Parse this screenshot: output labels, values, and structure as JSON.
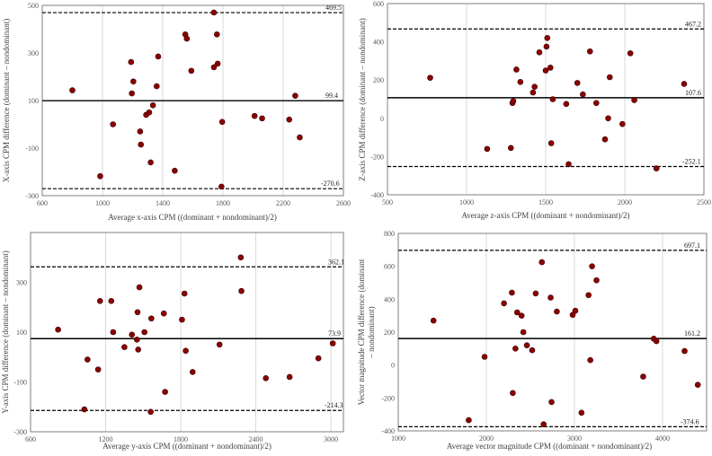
{
  "chart_data": [
    {
      "type": "scatter",
      "title": "",
      "xlabel": "Average x-axis CPM ((dominant + nondominant)/2)",
      "ylabel": "X-axis CPM difference (dominant – nondominant)",
      "xlim": [
        600,
        2600
      ],
      "ylim": [
        -300,
        500
      ],
      "xticks": [
        "600",
        "1000",
        "1400",
        "1800",
        "2200",
        "2600"
      ],
      "yticks": [
        "-300",
        "-100",
        "100",
        "300",
        "500"
      ],
      "xgrid": [
        1000,
        1400,
        1800,
        2200
      ],
      "grid": true,
      "mean_label": "99.4",
      "mean": 99.4,
      "upper_label": "469.5",
      "upper": 469.5,
      "lower_label": "-270.6",
      "lower": -270.6,
      "points": [
        [
          800,
          143
        ],
        [
          985,
          -218
        ],
        [
          1070,
          0
        ],
        [
          1190,
          262
        ],
        [
          1195,
          130
        ],
        [
          1205,
          180
        ],
        [
          1250,
          -30
        ],
        [
          1255,
          -85
        ],
        [
          1290,
          40
        ],
        [
          1310,
          50
        ],
        [
          1320,
          -160
        ],
        [
          1335,
          80
        ],
        [
          1360,
          160
        ],
        [
          1370,
          285
        ],
        [
          1480,
          -195
        ],
        [
          1550,
          378
        ],
        [
          1560,
          360
        ],
        [
          1590,
          225
        ],
        [
          1740,
          470
        ],
        [
          1740,
          240
        ],
        [
          1760,
          378
        ],
        [
          1765,
          255
        ],
        [
          1790,
          -262
        ],
        [
          1795,
          10
        ],
        [
          2010,
          35
        ],
        [
          2060,
          25
        ],
        [
          2240,
          20
        ],
        [
          2280,
          120
        ],
        [
          2310,
          -55
        ]
      ]
    },
    {
      "type": "scatter",
      "title": "",
      "xlabel": "Average z-axis CPM ((dominant + nondominant)/2)",
      "ylabel": "Z-axis CPM difference (dominant – nondominant)",
      "xlim": [
        500,
        2500
      ],
      "ylim": [
        -400,
        600
      ],
      "xticks": [
        "500",
        "1000",
        "1500",
        "2000",
        "2500"
      ],
      "yticks": [
        "-400",
        "-200",
        "0",
        "200",
        "400",
        "600"
      ],
      "xgrid": [
        1000,
        1500,
        2000
      ],
      "grid": true,
      "mean_label": "107.6",
      "mean": 107.6,
      "upper_label": "467.2",
      "upper": 467.2,
      "lower_label": "-252.1",
      "lower": -252.1,
      "points": [
        [
          770,
          212
        ],
        [
          1130,
          -160
        ],
        [
          1280,
          -155
        ],
        [
          1290,
          80
        ],
        [
          1295,
          90
        ],
        [
          1315,
          255
        ],
        [
          1340,
          190
        ],
        [
          1420,
          135
        ],
        [
          1430,
          165
        ],
        [
          1460,
          345
        ],
        [
          1500,
          250
        ],
        [
          1505,
          375
        ],
        [
          1510,
          420
        ],
        [
          1530,
          265
        ],
        [
          1535,
          -130
        ],
        [
          1545,
          100
        ],
        [
          1630,
          75
        ],
        [
          1645,
          -240
        ],
        [
          1700,
          185
        ],
        [
          1735,
          125
        ],
        [
          1780,
          350
        ],
        [
          1820,
          80
        ],
        [
          1875,
          -110
        ],
        [
          1895,
          0
        ],
        [
          1905,
          215
        ],
        [
          1985,
          -30
        ],
        [
          2035,
          340
        ],
        [
          2060,
          95
        ],
        [
          2200,
          -262
        ],
        [
          2375,
          180
        ]
      ]
    },
    {
      "type": "scatter",
      "title": "",
      "xlabel": "Average y-axis CPM ((dominant + nondominant)/2)",
      "ylabel": "Y-axis CPM difference (dominant – nondominant)",
      "xlim": [
        600,
        3100
      ],
      "ylim": [
        -300,
        500
      ],
      "xticks": [
        "600",
        "1200",
        "1800",
        "2400",
        "3000"
      ],
      "yticks": [
        "-300",
        "-100",
        "100",
        "300"
      ],
      "xgrid": [
        1200,
        1800,
        2400,
        3000
      ],
      "grid": true,
      "mean_label": "73.9",
      "mean": 73.9,
      "upper_label": "362.1",
      "upper": 362.1,
      "lower_label": "-214.3",
      "lower": -214.3,
      "points": [
        [
          820,
          110
        ],
        [
          1030,
          -210
        ],
        [
          1055,
          -10
        ],
        [
          1140,
          -50
        ],
        [
          1155,
          225
        ],
        [
          1245,
          225
        ],
        [
          1260,
          100
        ],
        [
          1350,
          40
        ],
        [
          1410,
          90
        ],
        [
          1450,
          70
        ],
        [
          1455,
          180
        ],
        [
          1460,
          30
        ],
        [
          1470,
          280
        ],
        [
          1510,
          100
        ],
        [
          1560,
          -220
        ],
        [
          1565,
          155
        ],
        [
          1665,
          175
        ],
        [
          1675,
          -140
        ],
        [
          1810,
          150
        ],
        [
          1830,
          255
        ],
        [
          1840,
          25
        ],
        [
          1895,
          -60
        ],
        [
          2110,
          50
        ],
        [
          2280,
          400
        ],
        [
          2285,
          265
        ],
        [
          2480,
          -85
        ],
        [
          2670,
          -80
        ],
        [
          2900,
          -5
        ],
        [
          3015,
          55
        ]
      ]
    },
    {
      "type": "scatter",
      "title": "",
      "xlabel": "Average vector magnitude CPM ((dominant + nondominant)/2)",
      "ylabel": "Vector magnitude CPM difference (dominant – nondominant)",
      "xlim": [
        1000,
        4500
      ],
      "ylim": [
        -400,
        800
      ],
      "xticks": [
        "1000",
        "2000",
        "3000",
        "4000"
      ],
      "yticks": [
        "-400",
        "-200",
        "0",
        "200",
        "400",
        "600",
        "800"
      ],
      "xgrid": [
        2000,
        3000,
        4000
      ],
      "grid": true,
      "mean_label": "161.2",
      "mean": 161.2,
      "upper_label": "697.1",
      "upper": 697.1,
      "lower_label": "-374.6",
      "lower": -374.6,
      "points": [
        [
          1400,
          270
        ],
        [
          1800,
          -335
        ],
        [
          1980,
          50
        ],
        [
          2200,
          375
        ],
        [
          2290,
          440
        ],
        [
          2300,
          -170
        ],
        [
          2330,
          100
        ],
        [
          2350,
          320
        ],
        [
          2400,
          300
        ],
        [
          2420,
          200
        ],
        [
          2460,
          120
        ],
        [
          2520,
          90
        ],
        [
          2560,
          435
        ],
        [
          2630,
          625
        ],
        [
          2650,
          -360
        ],
        [
          2730,
          410
        ],
        [
          2740,
          -225
        ],
        [
          2800,
          325
        ],
        [
          2980,
          305
        ],
        [
          3010,
          330
        ],
        [
          3080,
          -290
        ],
        [
          3160,
          425
        ],
        [
          3180,
          30
        ],
        [
          3200,
          600
        ],
        [
          3250,
          515
        ],
        [
          3780,
          -70
        ],
        [
          3900,
          160
        ],
        [
          3930,
          145
        ],
        [
          4250,
          85
        ],
        [
          4400,
          -120
        ]
      ]
    }
  ]
}
